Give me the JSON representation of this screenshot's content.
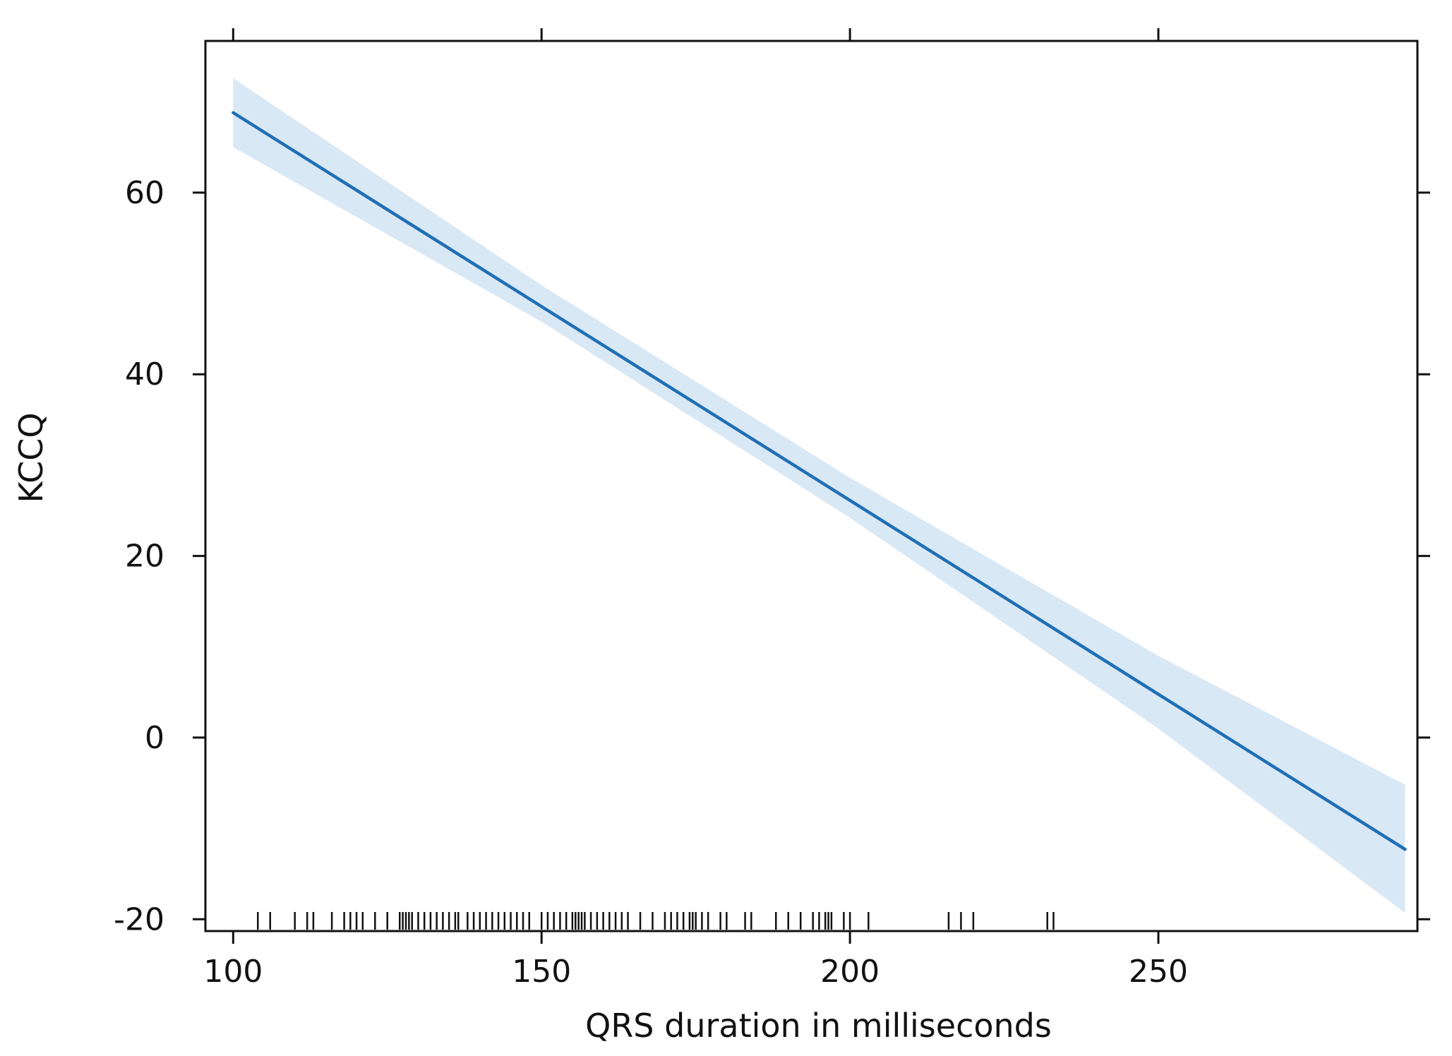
{
  "chart_data": {
    "type": "line",
    "title": "",
    "xlabel": "QRS duration in milliseconds",
    "ylabel": "KCCQ",
    "xlim": [
      95.5,
      292
    ],
    "ylim": [
      -21.3,
      76.7
    ],
    "x_ticks": [
      100,
      150,
      200,
      250
    ],
    "y_ticks": [
      -20,
      0,
      20,
      40,
      60
    ],
    "x_tick_labels": [
      "100",
      "150",
      "200",
      "250"
    ],
    "y_tick_labels": [
      "-20",
      "0",
      "20",
      "40",
      "60"
    ],
    "grid": false,
    "series": [
      {
        "type": "line",
        "x": [
          100,
          290
        ],
        "y": [
          68.8,
          -12.3
        ],
        "color": "#1f6fb5"
      },
      {
        "type": "confidence_band",
        "x": [
          100,
          150,
          200,
          250,
          290
        ],
        "lower": [
          65.0,
          45.8,
          24.2,
          1.0,
          -19.3
        ],
        "upper": [
          72.6,
          49.8,
          28.6,
          9.0,
          -5.2
        ],
        "color": "#d9e8f5"
      }
    ],
    "rug_x": [
      104,
      106,
      110,
      112,
      113,
      116,
      118,
      119,
      120,
      121,
      123,
      125,
      127,
      127.5,
      128,
      128.5,
      129,
      130,
      131,
      132,
      133,
      134,
      135,
      136,
      136.5,
      138,
      139,
      140,
      141,
      142,
      143,
      144,
      145,
      146,
      147,
      148,
      150,
      151,
      152,
      153,
      154,
      155,
      155.5,
      156,
      156.5,
      157,
      158,
      159,
      160,
      161,
      162,
      163,
      164,
      166,
      168,
      170,
      171,
      172,
      173,
      174,
      174.5,
      175,
      176,
      177,
      179,
      180,
      183,
      184,
      188,
      190,
      192,
      194,
      195,
      196,
      196.5,
      197,
      199,
      200,
      203,
      216,
      218,
      220,
      232,
      233
    ]
  }
}
